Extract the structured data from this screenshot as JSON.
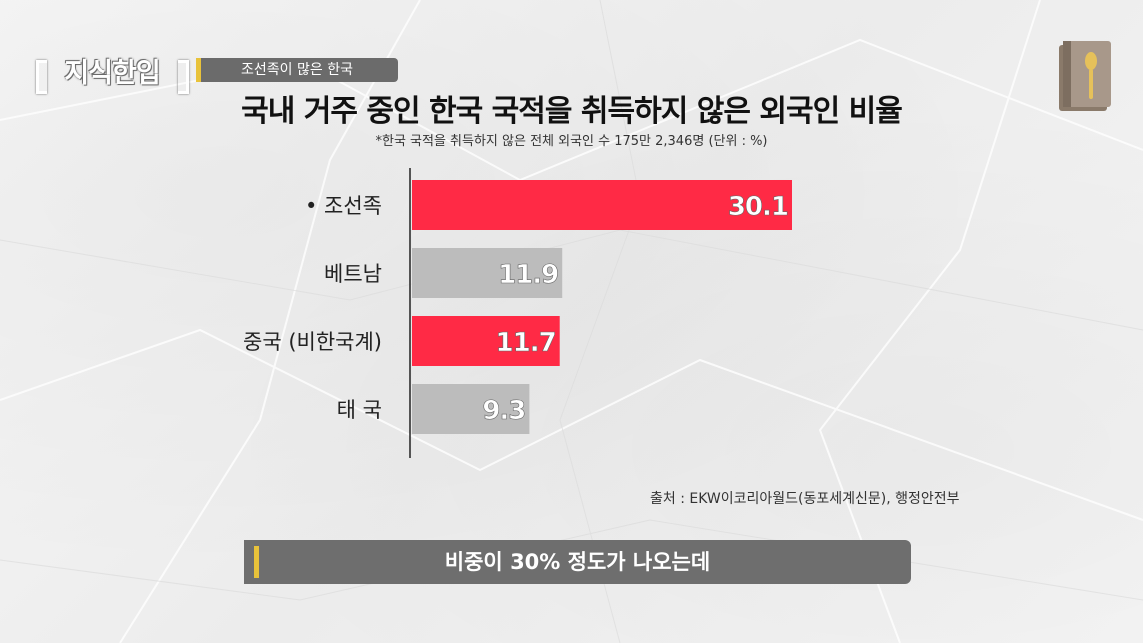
{
  "logo_text": "지식한입",
  "tag": "조선족이 많은 한국",
  "title": "국내 거주 중인 한국 국적을 취득하지 않은 외국인 비율",
  "subtitle": "*한국 국적을 취득하지 않은 전체 외국인 수 175만 2,346명 (단위 : %)",
  "source": "출처 : EKW이코리아월드(동포세계신문), 행정안전부",
  "caption": "비중이 30% 정도가 나오는데",
  "colors": {
    "highlight": "#ff2a45",
    "neutral": "#bcbcbc",
    "accent": "#e8c23a"
  },
  "icons": {
    "book": "book-spoon-icon"
  },
  "chart_data": {
    "type": "bar",
    "orientation": "horizontal",
    "title": "국내 거주 중인 한국 국적을 취득하지 않은 외국인 비율",
    "unit": "%",
    "categories": [
      "• 조선족",
      "베트남",
      "중국 (비한국계)",
      "태 국"
    ],
    "values": [
      30.1,
      11.9,
      11.7,
      9.3
    ],
    "value_labels": [
      "30.1",
      "11.9",
      "11.7",
      "9.3"
    ],
    "bar_colors": [
      "#ff2a45",
      "#bcbcbc",
      "#ff2a45",
      "#bcbcbc"
    ],
    "xlim": [
      0,
      30.1
    ],
    "grid": false,
    "legend": false
  }
}
